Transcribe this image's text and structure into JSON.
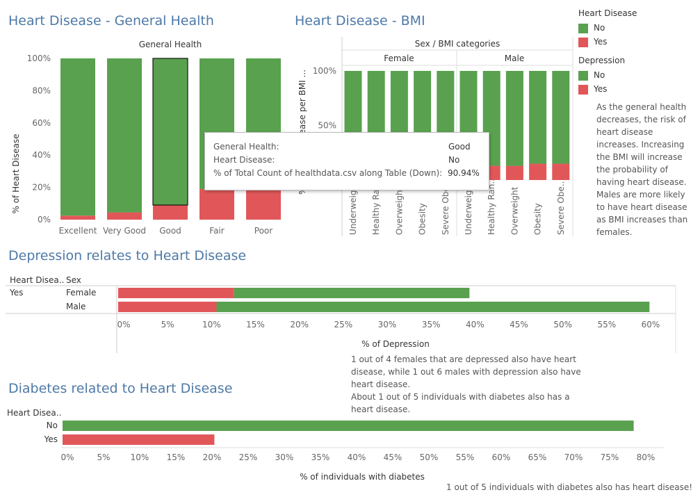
{
  "titles": {
    "general_health": "Heart Disease - General Health",
    "bmi": "Heart Disease - BMI",
    "depression": "Depression relates to Heart Disease",
    "diabetes": "Diabetes related to Heart Disease"
  },
  "legend": {
    "heart_disease_title": "Heart Disease",
    "depression_title": "Depression",
    "no_label": "No",
    "yes_label": "Yes",
    "no_color": "#59a14f",
    "yes_color": "#e15759"
  },
  "side_note": "As the general health decreases, the risk of heart disease increases. Increasing the BMI will increase the probability of having heart disease.  Males are more likely to have heart disease as BMI increases than females.",
  "tooltip": {
    "row1_label": "General Health:",
    "row1_value": "Good",
    "row2_label": "Heart Disease:",
    "row2_value": "No",
    "row3_label": "% of Total Count of healthdata.csv along Table (Down):",
    "row3_value": "90.94%"
  },
  "depression_note": "1 out of 4 females that are depressed also have heart disease, while 1 out 6 males with depression also have heart disease.\nAbout 1 out of 5 individuals with diabetes also has a heart disease.",
  "diabetes_footnote": "1 out of 5 individuals with diabetes also has heart disease!",
  "chart_data": [
    {
      "type": "bar",
      "stacked": true,
      "title": "General Health",
      "ylabel": "% of Heart Disease",
      "categories": [
        "Excellent",
        "Very Good",
        "Good",
        "Fair",
        "Poor"
      ],
      "series": [
        {
          "name": "No",
          "values": [
            97.5,
            95.5,
            90.94,
            81,
            66
          ]
        },
        {
          "name": "Yes",
          "values": [
            2.5,
            4.5,
            9.06,
            19,
            34
          ]
        }
      ],
      "y_ticks": [
        "0%",
        "20%",
        "40%",
        "60%",
        "80%",
        "100%"
      ],
      "ylim": [
        0,
        100
      ]
    },
    {
      "type": "bar",
      "stacked": true,
      "title": "Sex / BMI categories",
      "ylabel": "% of Heart Disease per BMI ...",
      "groups": [
        "Female",
        "Male"
      ],
      "categories": [
        "Underweight",
        "Healthy Ran..",
        "Overweight",
        "Obesity",
        "Severe Obe.."
      ],
      "series": [
        {
          "name": "No",
          "female": [
            93,
            93,
            92,
            91,
            90
          ],
          "male": [
            88,
            87,
            87,
            85,
            85
          ]
        },
        {
          "name": "Yes",
          "female": [
            7,
            7,
            8,
            9,
            10
          ],
          "male": [
            12,
            13,
            13,
            15,
            15
          ]
        }
      ],
      "y_ticks": [
        "50%",
        "100%"
      ],
      "ylim": [
        0,
        100
      ]
    },
    {
      "type": "bar",
      "orientation": "horizontal",
      "stacked": true,
      "xlabel": "% of Depression",
      "row_header_1": "Heart Disea..",
      "row_header_2": "Sex",
      "row_group": "Yes",
      "categories": [
        "Female",
        "Male"
      ],
      "series": [
        {
          "name": "Yes",
          "values": [
            13.2,
            11.2
          ]
        },
        {
          "name": "No",
          "values": [
            26.8,
            49.3
          ]
        }
      ],
      "x_ticks": [
        "0%",
        "5%",
        "10%",
        "15%",
        "20%",
        "25%",
        "30%",
        "35%",
        "40%",
        "45%",
        "50%",
        "55%",
        "60%"
      ],
      "xlim": [
        0,
        60
      ]
    },
    {
      "type": "bar",
      "orientation": "horizontal",
      "xlabel": "% of individuals with diabetes",
      "row_header": "Heart Disea..",
      "categories": [
        "No",
        "Yes"
      ],
      "values": [
        79,
        21
      ],
      "colors": [
        "#59a14f",
        "#e15759"
      ],
      "x_ticks": [
        "0%",
        "5%",
        "10%",
        "15%",
        "20%",
        "25%",
        "30%",
        "35%",
        "40%",
        "45%",
        "50%",
        "55%",
        "60%",
        "65%",
        "70%",
        "75%",
        "80%"
      ],
      "xlim": [
        0,
        80
      ]
    }
  ]
}
